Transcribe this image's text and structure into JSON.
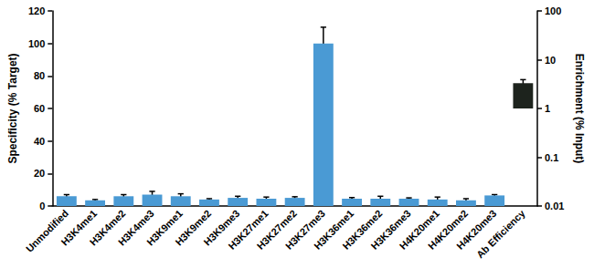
{
  "chart_data": {
    "type": "bar",
    "categories": [
      "Unmodified",
      "H3K4me1",
      "H3K4me2",
      "H3K4me3",
      "H3K9me1",
      "H3K9me2",
      "H3K9me3",
      "H3K27me1",
      "H3K27me2",
      "H3K27me3",
      "H3K36me1",
      "H3K36me2",
      "H3K36me3",
      "H4K20me1",
      "H4K20me2",
      "H4K20me3",
      "Ab Efficiency"
    ],
    "y_label": "Specificity (% Target)",
    "y2_label": "Enrichment (% Input)",
    "ylim": [
      0,
      120
    ],
    "yticks": [
      0,
      20,
      40,
      60,
      80,
      100,
      120
    ],
    "y2lim": [
      0.01,
      100
    ],
    "y2ticks": [
      0.01,
      0.1,
      1,
      10,
      100
    ],
    "log": "y2",
    "grid": false,
    "series": [
      {
        "color": "#4a9ad4",
        "values": [
          6,
          3.5,
          6,
          7,
          6,
          4,
          5,
          4.5,
          5,
          100,
          4.5,
          4.5,
          4.5,
          4,
          3.5,
          6.5,
          null
        ],
        "errors": [
          1,
          0.5,
          1,
          2,
          1.5,
          0.5,
          1,
          1,
          0.7,
          10,
          0.7,
          1.5,
          0.5,
          1.5,
          1,
          0.5,
          null
        ]
      },
      {
        "color": "#1d231d",
        "axis": "y2",
        "values": [
          null,
          null,
          null,
          null,
          null,
          null,
          null,
          null,
          null,
          null,
          null,
          null,
          null,
          null,
          null,
          null,
          3.3
        ],
        "errors": [
          null,
          null,
          null,
          null,
          null,
          null,
          null,
          null,
          null,
          null,
          null,
          null,
          null,
          null,
          null,
          null,
          0.6
        ]
      }
    ]
  }
}
